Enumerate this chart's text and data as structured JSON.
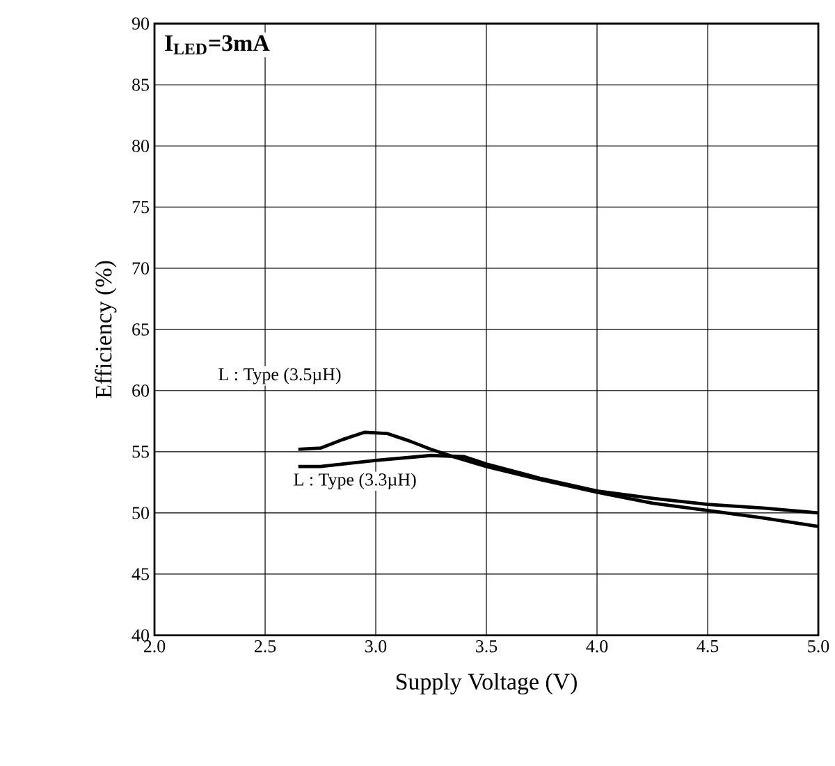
{
  "chart_data": {
    "type": "line",
    "xlabel": "Supply Voltage (V)",
    "ylabel": "Efficiency (%)",
    "annotations": [
      "I$_{LED}$=3mA"
    ],
    "xlim": [
      2.0,
      5.0
    ],
    "ylim": [
      40,
      90
    ],
    "xticks": [
      {
        "value": 2.0,
        "label": "2.0"
      },
      {
        "value": 2.5,
        "label": "2.5"
      },
      {
        "value": 3.0,
        "label": "3.0"
      },
      {
        "value": 3.5,
        "label": "3.5"
      },
      {
        "value": 4.0,
        "label": "4.0"
      },
      {
        "value": 4.5,
        "label": "4.5"
      },
      {
        "value": 5.0,
        "label": "5.0"
      }
    ],
    "yticks": [
      40,
      45,
      50,
      55,
      60,
      65,
      70,
      75,
      80,
      85,
      90
    ],
    "grid": true,
    "legend": false,
    "marker": "none",
    "line_style": "solid",
    "series": [
      {
        "name": "L : Type (3.5µH)",
        "color": "#000000",
        "x": [
          2.65,
          2.75,
          2.85,
          2.95,
          3.05,
          3.15,
          3.25,
          3.35,
          3.5,
          3.75,
          4.0,
          4.25,
          4.5,
          4.75,
          5.0
        ],
        "values": [
          55.2,
          55.3,
          56.0,
          56.6,
          56.5,
          55.9,
          55.2,
          54.6,
          53.8,
          52.7,
          51.7,
          50.8,
          50.2,
          49.6,
          48.9
        ]
      },
      {
        "name": "L : Type (3.3µH)",
        "color": "#000000",
        "x": [
          2.65,
          2.75,
          3.0,
          3.25,
          3.4,
          3.5,
          3.75,
          4.0,
          4.25,
          4.4,
          4.5,
          4.75,
          5.0
        ],
        "values": [
          53.8,
          53.8,
          54.3,
          54.7,
          54.6,
          54.0,
          52.8,
          51.8,
          51.2,
          50.9,
          50.7,
          50.4,
          50.0
        ]
      }
    ]
  }
}
